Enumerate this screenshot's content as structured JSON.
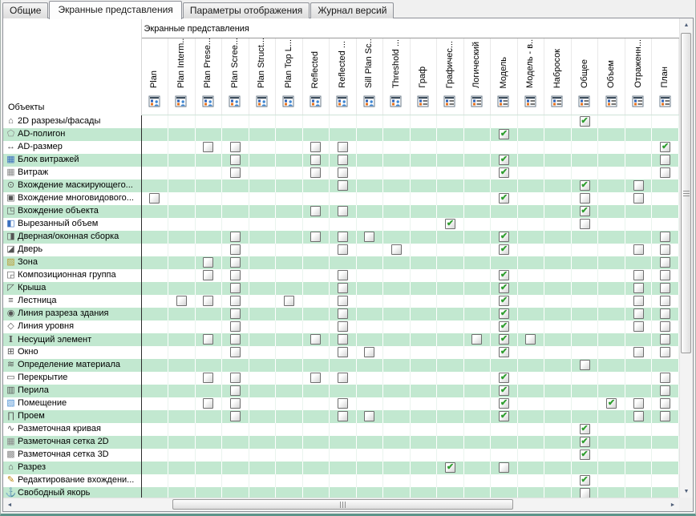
{
  "window": {
    "tabs": [
      {
        "label": "Общие",
        "active": false
      },
      {
        "label": "Экранные представления",
        "active": true
      },
      {
        "label": "Параметры отображения",
        "active": false
      },
      {
        "label": "Журнал версий",
        "active": false
      }
    ]
  },
  "table": {
    "group_header": "Экранные представления",
    "objects_label": "Объекты",
    "checkmark_glyph": "✔",
    "columns": [
      {
        "label": "Plan",
        "icon": "plan-view-user-icon"
      },
      {
        "label": "Plan Interm...",
        "icon": "plan-view-user-icon"
      },
      {
        "label": "Plan Prese...",
        "icon": "plan-view-user-icon"
      },
      {
        "label": "Plan Scree...",
        "icon": "plan-view-user-icon"
      },
      {
        "label": "Plan Struct...",
        "icon": "plan-view-user-icon"
      },
      {
        "label": "Plan Top L...",
        "icon": "plan-view-user-icon"
      },
      {
        "label": "Reflected",
        "icon": "plan-view-user-icon"
      },
      {
        "label": "Reflected ...",
        "icon": "plan-view-user-icon"
      },
      {
        "label": "Sill Plan Sc...",
        "icon": "plan-view-user-icon"
      },
      {
        "label": "Threshold ...",
        "icon": "plan-view-user-icon"
      },
      {
        "label": "Граф",
        "icon": "representation-list-icon"
      },
      {
        "label": "Графичес...",
        "icon": "representation-list-icon"
      },
      {
        "label": "Логический",
        "icon": "representation-list-icon"
      },
      {
        "label": "Модель",
        "icon": "representation-list-icon"
      },
      {
        "label": "Модель - в...",
        "icon": "representation-list-icon"
      },
      {
        "label": "Набросок",
        "icon": "representation-list-icon"
      },
      {
        "label": "Общее",
        "icon": "representation-list-icon"
      },
      {
        "label": "Объем",
        "icon": "representation-list-icon"
      },
      {
        "label": "Отраженн...",
        "icon": "representation-list-icon"
      },
      {
        "label": "План",
        "icon": "representation-list-icon"
      }
    ],
    "rows": [
      {
        "label": "2D разрезы/фасады",
        "icon": "section-elevation-icon",
        "glyph": "⌂",
        "cells": {
          "17": "checked"
        }
      },
      {
        "label": "AD-полигон",
        "icon": "polygon-icon",
        "glyph": "⬠",
        "color": "#8a8a8a",
        "cells": {
          "14": "checked"
        }
      },
      {
        "label": "AD-размер",
        "icon": "dimension-icon",
        "glyph": "↔",
        "cells": {
          "3": "unchecked",
          "4": "unchecked",
          "7": "unchecked",
          "8": "unchecked",
          "20": "checked"
        }
      },
      {
        "label": "Блок витражей",
        "icon": "curtain-wall-block-icon",
        "glyph": "▦",
        "color": "#3a6fbf",
        "cells": {
          "4": "unchecked",
          "7": "unchecked",
          "8": "unchecked",
          "14": "checked",
          "20": "unchecked"
        }
      },
      {
        "label": "Витраж",
        "icon": "curtain-wall-icon",
        "glyph": "▦",
        "color": "#8a8a8a",
        "cells": {
          "4": "unchecked",
          "7": "unchecked",
          "8": "unchecked",
          "14": "checked",
          "20": "unchecked"
        }
      },
      {
        "label": "Вхождение маскирующего...",
        "icon": "masking-instance-icon",
        "glyph": "⊙",
        "cells": {
          "8": "unchecked",
          "17": "checked",
          "19": "unchecked"
        }
      },
      {
        "label": "Вхождение многовидового...",
        "icon": "multiview-instance-icon",
        "glyph": "▣",
        "cells": {
          "1": "unchecked",
          "14": "checked",
          "17": "unchecked",
          "19": "unchecked"
        }
      },
      {
        "label": "Вхождение объекта",
        "icon": "object-instance-icon",
        "glyph": "◳",
        "cells": {
          "7": "unchecked",
          "8": "unchecked",
          "17": "checked"
        }
      },
      {
        "label": "Вырезанный объем",
        "icon": "cut-volume-icon",
        "glyph": "◧",
        "color": "#3a6fbf",
        "cells": {
          "12": "checked",
          "17": "unchecked"
        }
      },
      {
        "label": "Дверная/оконная сборка",
        "icon": "door-window-assembly-icon",
        "glyph": "◨",
        "cells": {
          "4": "unchecked",
          "7": "unchecked",
          "8": "unchecked",
          "9": "unchecked",
          "14": "checked",
          "20": "unchecked"
        }
      },
      {
        "label": "Дверь",
        "icon": "door-icon",
        "glyph": "◪",
        "cells": {
          "4": "unchecked",
          "8": "unchecked",
          "10": "unchecked",
          "14": "checked",
          "19": "unchecked",
          "20": "unchecked"
        }
      },
      {
        "label": "Зона",
        "icon": "zone-icon",
        "glyph": "▨",
        "color": "#b89b2e",
        "cells": {
          "3": "unchecked",
          "4": "unchecked",
          "20": "unchecked"
        }
      },
      {
        "label": "Композиционная группа",
        "icon": "composition-group-icon",
        "glyph": "◲",
        "cells": {
          "3": "unchecked",
          "4": "unchecked",
          "8": "unchecked",
          "14": "checked",
          "19": "unchecked",
          "20": "unchecked"
        }
      },
      {
        "label": "Крыша",
        "icon": "roof-icon",
        "glyph": "◸",
        "cells": {
          "4": "unchecked",
          "8": "unchecked",
          "14": "checked",
          "19": "unchecked",
          "20": "unchecked"
        }
      },
      {
        "label": "Лестница",
        "icon": "stairs-icon",
        "glyph": "≡",
        "cells": {
          "2": "unchecked",
          "3": "unchecked",
          "4": "unchecked",
          "6": "unchecked",
          "8": "unchecked",
          "14": "checked",
          "19": "unchecked",
          "20": "unchecked"
        }
      },
      {
        "label": "Линия разреза здания",
        "icon": "building-section-line-icon",
        "glyph": "◉",
        "cells": {
          "4": "unchecked",
          "8": "unchecked",
          "14": "checked",
          "19": "unchecked",
          "20": "unchecked"
        }
      },
      {
        "label": "Линия уровня",
        "icon": "level-line-icon",
        "glyph": "◇",
        "cells": {
          "4": "unchecked",
          "8": "unchecked",
          "14": "checked",
          "19": "unchecked",
          "20": "unchecked"
        }
      },
      {
        "label": "Несущий элемент",
        "icon": "structural-member-icon",
        "glyph": "I",
        "serif": true,
        "cells": {
          "3": "unchecked",
          "4": "unchecked",
          "7": "unchecked",
          "8": "unchecked",
          "13": "unchecked",
          "14": "checked",
          "15": "unchecked",
          "20": "unchecked"
        }
      },
      {
        "label": "Окно",
        "icon": "window-icon",
        "glyph": "⊞",
        "cells": {
          "4": "unchecked",
          "8": "unchecked",
          "9": "unchecked",
          "14": "checked",
          "19": "unchecked",
          "20": "unchecked"
        }
      },
      {
        "label": "Определение материала",
        "icon": "material-definition-icon",
        "glyph": "≋",
        "cells": {
          "17": "unchecked"
        }
      },
      {
        "label": "Перекрытие",
        "icon": "slab-icon",
        "glyph": "▭",
        "cells": {
          "3": "unchecked",
          "4": "unchecked",
          "7": "unchecked",
          "8": "unchecked",
          "14": "checked",
          "20": "unchecked"
        }
      },
      {
        "label": "Перила",
        "icon": "railing-icon",
        "glyph": "▥",
        "cells": {
          "4": "unchecked",
          "14": "checked",
          "20": "unchecked"
        }
      },
      {
        "label": "Помещение",
        "icon": "room-icon",
        "glyph": "▧",
        "color": "#4a8fd4",
        "cells": {
          "3": "unchecked",
          "4": "unchecked",
          "8": "unchecked",
          "14": "checked",
          "18": "checked",
          "19": "unchecked",
          "20": "unchecked"
        }
      },
      {
        "label": "Проем",
        "icon": "opening-icon",
        "glyph": "∏",
        "cells": {
          "4": "unchecked",
          "8": "unchecked",
          "9": "unchecked",
          "14": "checked",
          "19": "unchecked",
          "20": "unchecked"
        }
      },
      {
        "label": "Разметочная кривая",
        "icon": "layout-curve-icon",
        "glyph": "∿",
        "cells": {
          "17": "checked"
        }
      },
      {
        "label": "Разметочная сетка 2D",
        "icon": "layout-grid-2d-icon",
        "glyph": "▦",
        "color": "#8a8a8a",
        "cells": {
          "17": "checked"
        }
      },
      {
        "label": "Разметочная сетка 3D",
        "icon": "layout-grid-3d-icon",
        "glyph": "▩",
        "color": "#8a8a8a",
        "cells": {
          "17": "checked"
        }
      },
      {
        "label": "Разрез",
        "icon": "section-icon",
        "glyph": "⌂",
        "cells": {
          "12": "checked",
          "14": "unchecked"
        }
      },
      {
        "label": "Редактирование вхождени...",
        "icon": "edit-instance-icon",
        "glyph": "✎",
        "color": "#b8860b",
        "cells": {
          "17": "checked"
        }
      },
      {
        "label": "Свободный якорь",
        "icon": "free-anchor-icon",
        "glyph": "⚓",
        "cells": {
          "17": "unchecked"
        }
      }
    ]
  },
  "colors": {
    "row_alternate_green": "#c2e8d0",
    "checkmark_green": "#2f9e2f",
    "icon_orange": "#e8731e",
    "icon_blue": "#2e62b8",
    "name_column_divider": "#2b2b2b"
  },
  "scrollbars": {
    "vertical": {
      "up_arrow": "▲",
      "down_arrow": "▼"
    },
    "horizontal": {
      "left_arrow": "◄",
      "right_arrow": "►"
    }
  }
}
